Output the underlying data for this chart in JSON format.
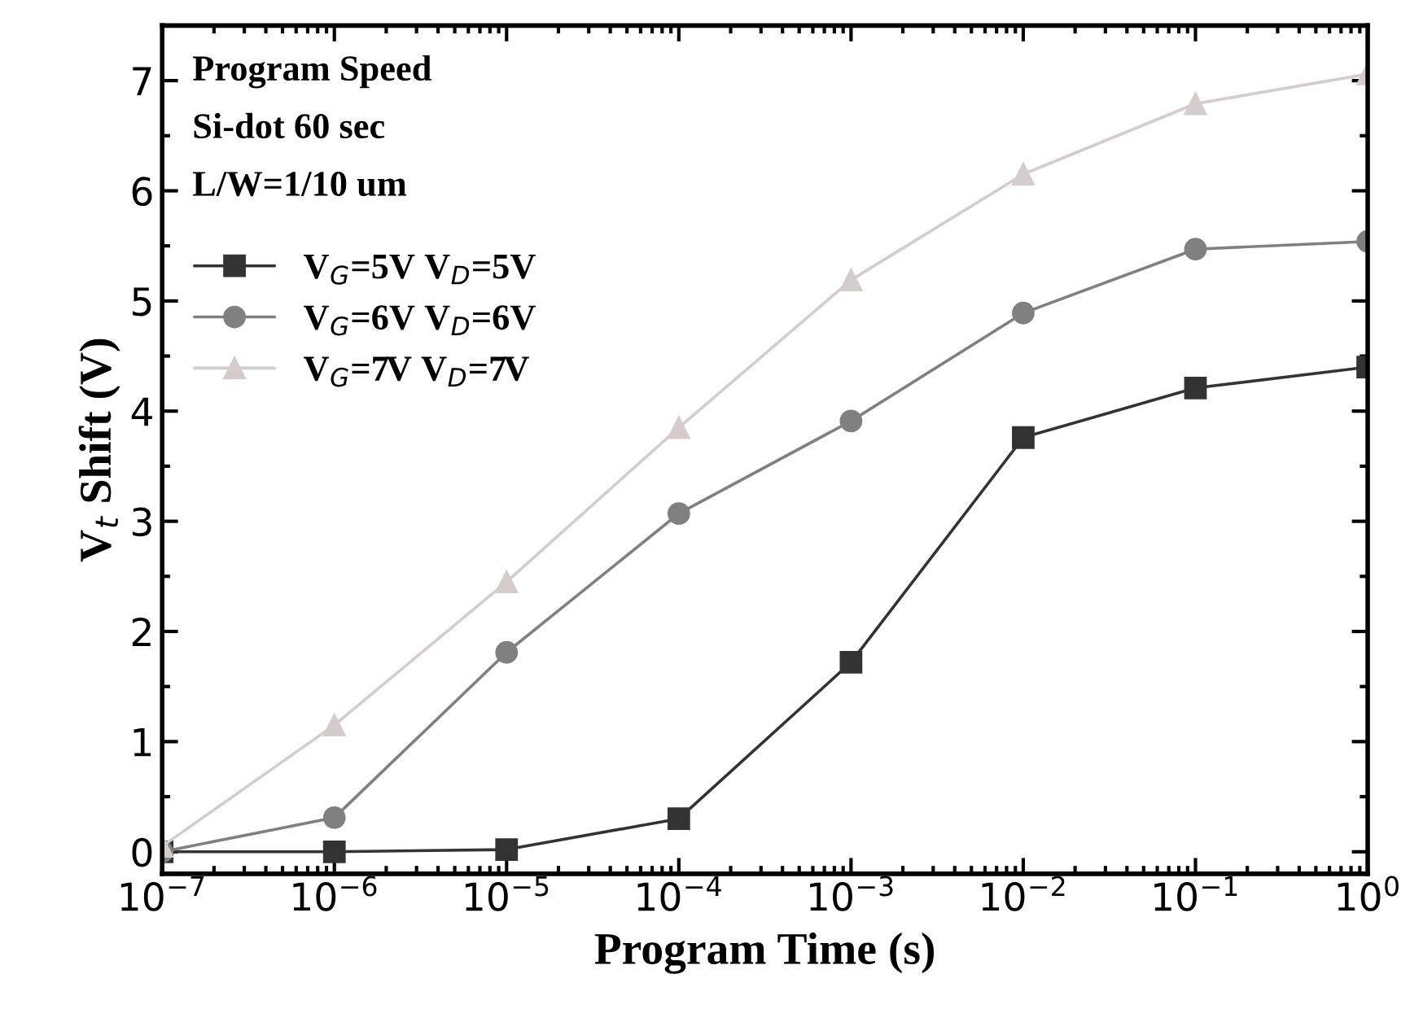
{
  "chart_data": {
    "type": "line",
    "xlabel": "Program Time (s)",
    "ylabel": "V$_{t}$ Shift (V)",
    "annotations": [
      "Program Speed",
      "Si-dot 60 sec",
      "L/W=1/10 um"
    ],
    "x": [
      1e-07,
      1e-06,
      1e-05,
      0.0001,
      0.001,
      0.01,
      0.1,
      1
    ],
    "series": [
      {
        "name": "V$_{G}$=5V V$_{D}$=5V",
        "color": "#333333",
        "marker": "square",
        "values": [
          0,
          0,
          0.02,
          0.3,
          1.72,
          3.76,
          4.21,
          4.4
        ]
      },
      {
        "name": "V$_{G}$=6V V$_{D}$=6V",
        "color": "#808080",
        "marker": "circle",
        "values": [
          0,
          0.31,
          1.81,
          3.07,
          3.91,
          4.89,
          5.47,
          5.54
        ]
      },
      {
        "name": "V$_{G}$=7V V$_{D}$=7V",
        "color": "#d5cccc",
        "marker": "triangle",
        "values": [
          0.05,
          1.15,
          2.45,
          3.85,
          5.19,
          6.15,
          6.79,
          7.06
        ]
      }
    ],
    "log": "x",
    "xlim": [
      1e-07,
      1
    ],
    "ylim": [
      -0.2,
      7.5
    ],
    "xticks": [
      {
        "value": 1e-07,
        "label": "10$^{−7}$"
      },
      {
        "value": 1e-06,
        "label": "10$^{−6}$"
      },
      {
        "value": 1e-05,
        "label": "10$^{−5}$"
      },
      {
        "value": 0.0001,
        "label": "10$^{−4}$"
      },
      {
        "value": 0.001,
        "label": "10$^{−3}$"
      },
      {
        "value": 0.01,
        "label": "10$^{−2}$"
      },
      {
        "value": 0.1,
        "label": "10$^{−1}$"
      },
      {
        "value": 1,
        "label": "10$^{0}$"
      }
    ],
    "yticks": [
      0,
      1,
      2,
      3,
      4,
      5,
      6,
      7
    ],
    "grid": false,
    "legend": "top left",
    "line_style": "solid"
  }
}
